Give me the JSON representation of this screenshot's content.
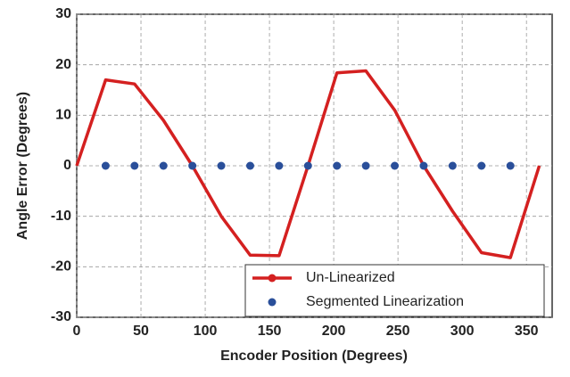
{
  "chart_data": {
    "type": "line",
    "x_label": "Encoder Position (Degrees)",
    "y_label": "Angle Error (Degrees)",
    "xlim": [
      0,
      370
    ],
    "xticks": [
      0,
      50,
      100,
      150,
      200,
      250,
      300,
      350
    ],
    "ylim": [
      -30,
      30
    ],
    "yticks": [
      -30,
      -20,
      -10,
      0,
      10,
      20,
      30
    ],
    "grid": true,
    "legend": "lower right",
    "series": [
      {
        "name": "Un-Linearized",
        "color": "#d42020",
        "style": "line",
        "x": [
          0,
          22.5,
          45,
          67.5,
          90,
          112.5,
          135,
          157.5,
          180,
          202.5,
          225,
          247.5,
          270,
          292.5,
          315,
          337.5,
          360
        ],
        "values": [
          0,
          17,
          16.2,
          9,
          0,
          -10,
          -17.7,
          -17.8,
          0,
          18.4,
          18.8,
          11,
          0,
          -9,
          -17.2,
          -18.2,
          0
        ]
      },
      {
        "name": "Segmented Linearization",
        "color": "#2a4f9a",
        "style": "markers",
        "x": [
          22.5,
          45,
          67.5,
          90,
          112.5,
          135,
          157.5,
          180,
          202.5,
          225,
          247.5,
          270,
          292.5,
          315,
          337.5
        ],
        "values": [
          0,
          0,
          0,
          0,
          0,
          0,
          0,
          0,
          0,
          0,
          0,
          0,
          0,
          0,
          0
        ]
      }
    ]
  }
}
